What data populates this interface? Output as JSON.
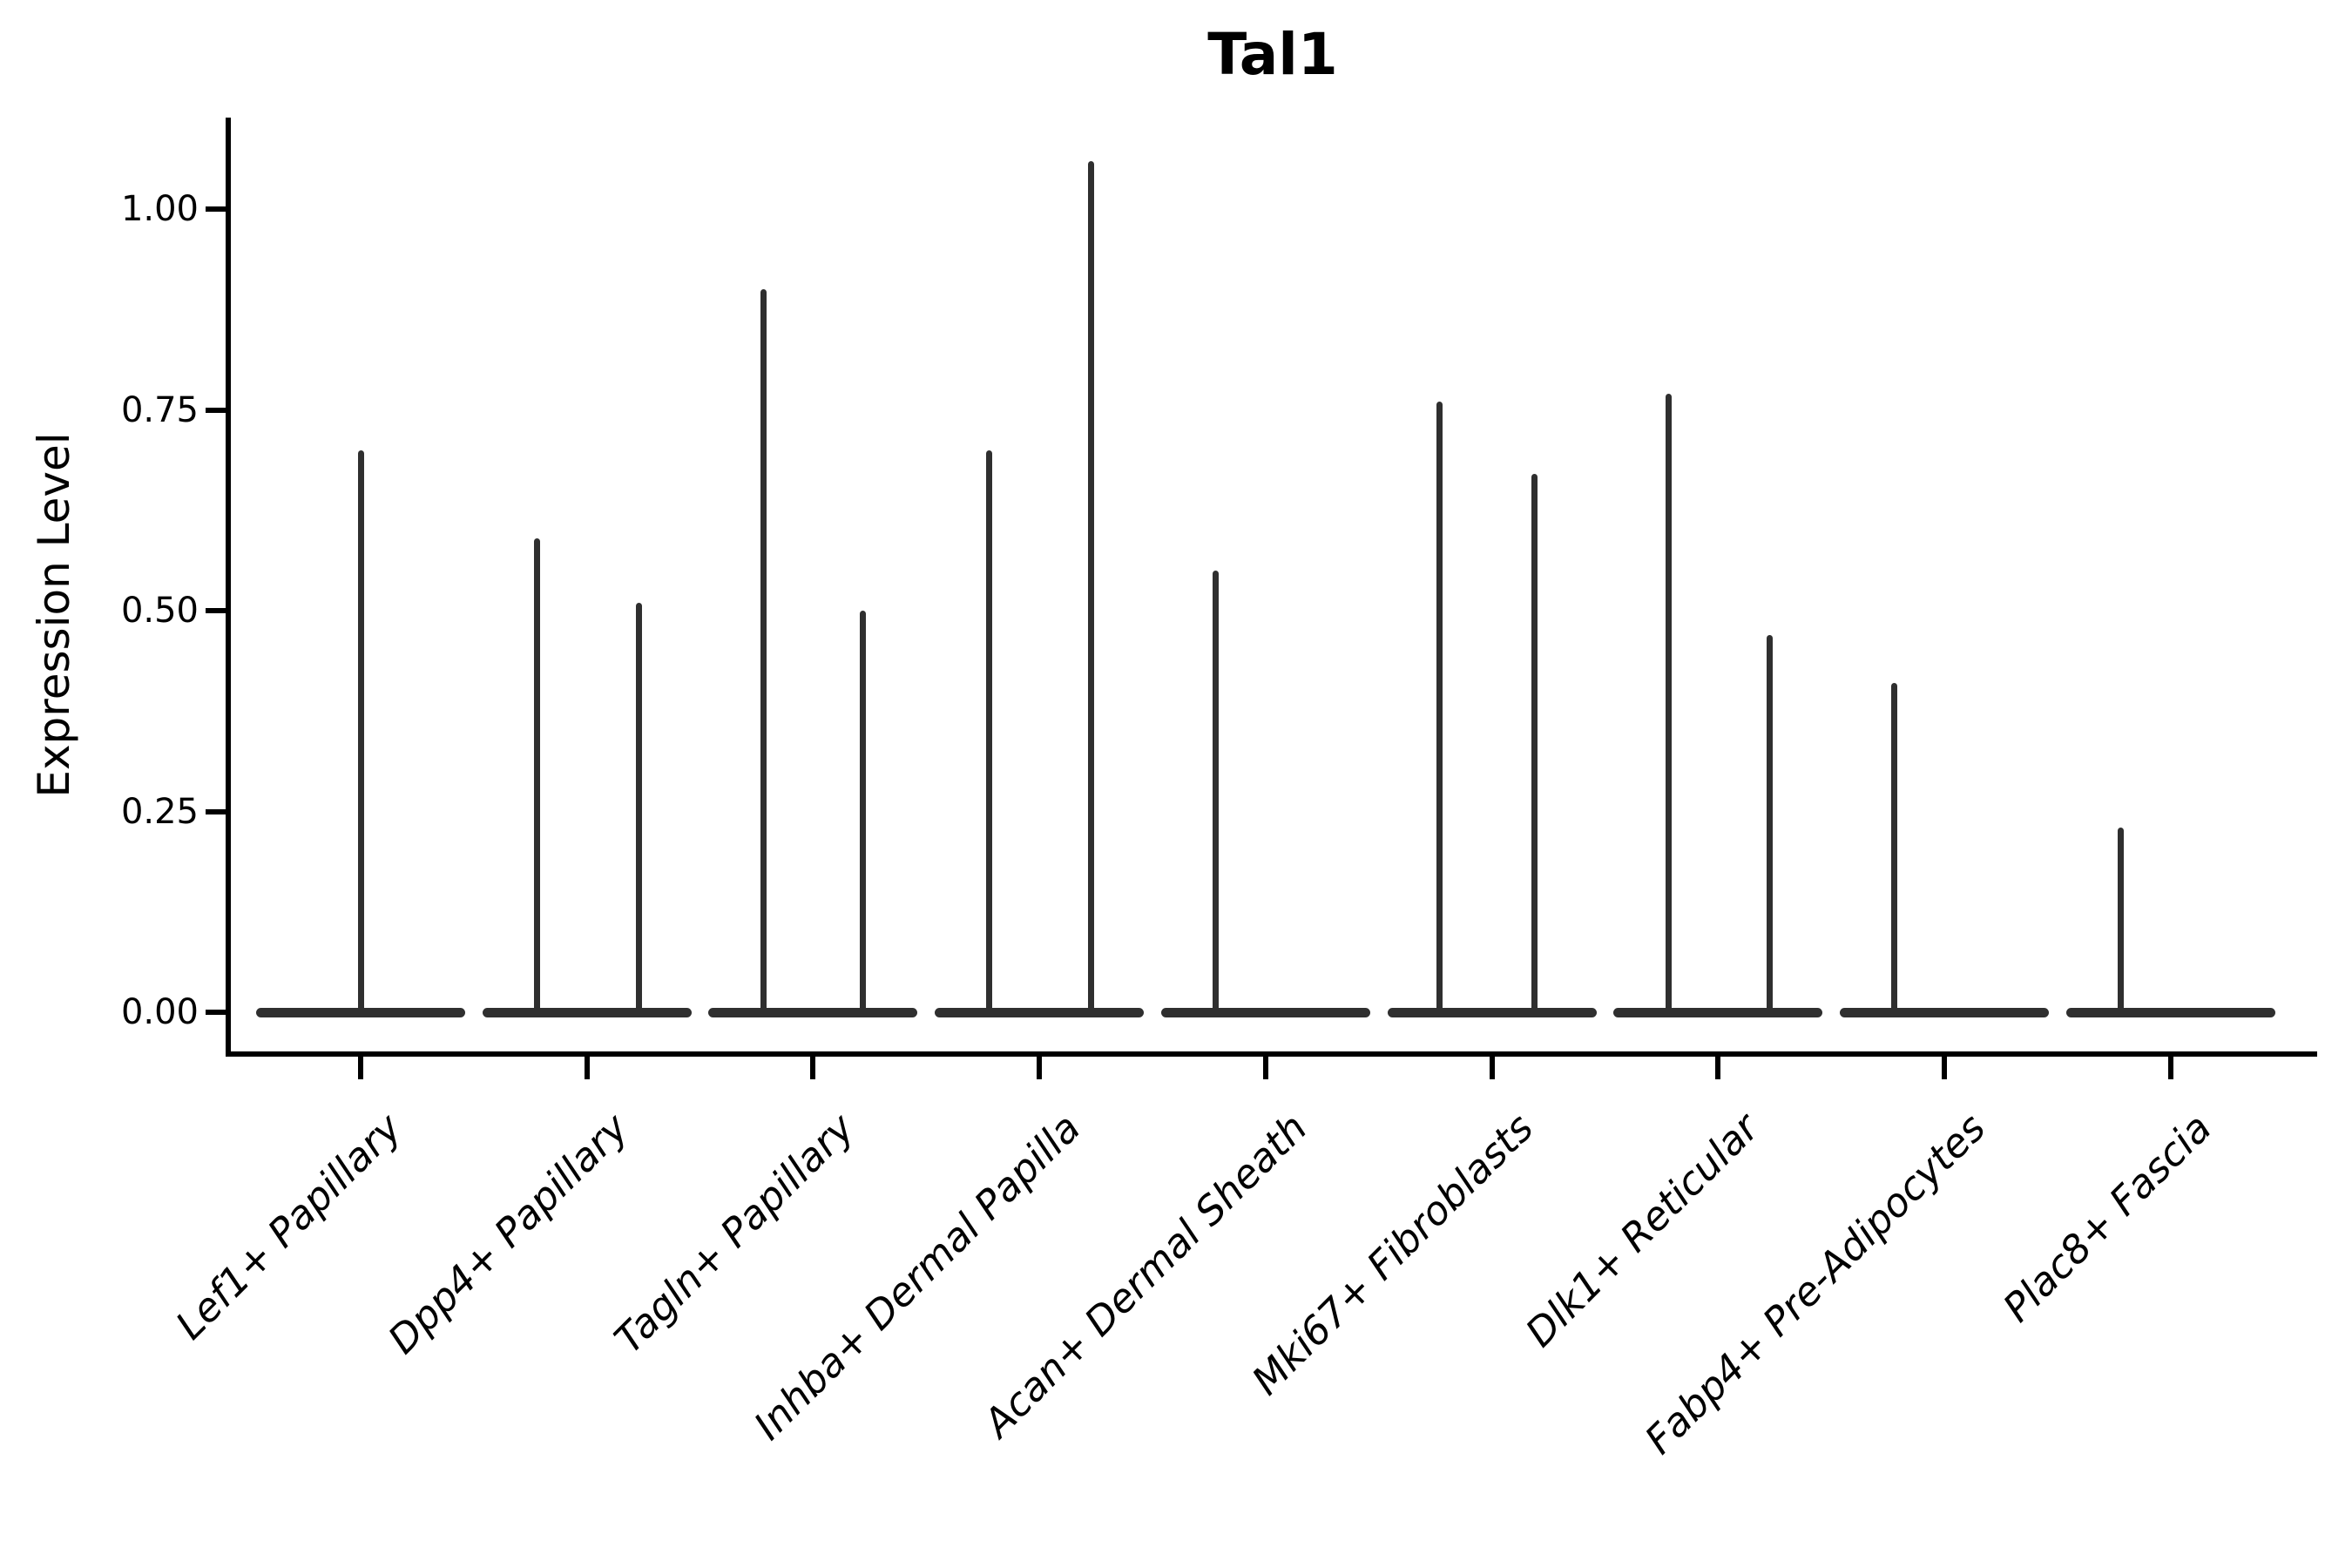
{
  "figure": {
    "title": "Tal1"
  },
  "y_axis": {
    "label": "Expression Level",
    "tick_labels": [
      "0.00",
      "0.25",
      "0.50",
      "0.75",
      "1.00"
    ],
    "tick_values": [
      0,
      0.25,
      0.5,
      0.75,
      1.0
    ]
  },
  "x_axis": {
    "categories": [
      "Lef1+ Papillary",
      "Dpp4+ Papillary",
      "Tagln+ Papillary",
      "Inhba+ Dermal Papilla",
      "Acan+ Dermal Sheath",
      "Mki67+ Fibroblasts",
      "Dlk1+ Reticular",
      "Fabp4+ Pre-Adipocytes",
      "Plac8+ Fascia"
    ]
  },
  "chart_data": {
    "type": "violin",
    "title": "Tal1",
    "xlabel": "",
    "ylabel": "Expression Level",
    "ylim": [
      0,
      1.11
    ],
    "yticks": [
      0,
      0.25,
      0.5,
      0.75,
      1.0
    ],
    "grid": false,
    "legend": "none",
    "categories": [
      "Lef1+ Papillary",
      "Dpp4+ Papillary",
      "Tagln+ Papillary",
      "Inhba+ Dermal Papilla",
      "Acan+ Dermal Sheath",
      "Mki67+ Fibroblasts",
      "Dlk1+ Reticular",
      "Fabp4+ Pre-Adipocytes",
      "Plac8+ Fascia"
    ],
    "violins": [
      {
        "category": "Lef1+ Papillary",
        "base_value": 0.0,
        "spikes": [
          {
            "offset": 0.0,
            "value": 0.7
          }
        ]
      },
      {
        "category": "Dpp4+ Papillary",
        "base_value": 0.0,
        "spikes": [
          {
            "offset": -0.22,
            "value": 0.59
          },
          {
            "offset": 0.23,
            "value": 0.51
          }
        ]
      },
      {
        "category": "Tagln+ Papillary",
        "base_value": 0.0,
        "spikes": [
          {
            "offset": -0.22,
            "value": 0.9
          },
          {
            "offset": 0.22,
            "value": 0.5
          }
        ]
      },
      {
        "category": "Inhba+ Dermal Papilla",
        "base_value": 0.0,
        "spikes": [
          {
            "offset": -0.22,
            "value": 0.7
          },
          {
            "offset": 0.23,
            "value": 1.06
          }
        ]
      },
      {
        "category": "Acan+ Dermal Sheath",
        "base_value": 0.0,
        "spikes": [
          {
            "offset": -0.22,
            "value": 0.55
          }
        ]
      },
      {
        "category": "Mki67+ Fibroblasts",
        "base_value": 0.0,
        "spikes": [
          {
            "offset": -0.23,
            "value": 0.76
          },
          {
            "offset": 0.19,
            "value": 0.67
          }
        ]
      },
      {
        "category": "Dlk1+ Reticular",
        "base_value": 0.0,
        "spikes": [
          {
            "offset": -0.22,
            "value": 0.77
          },
          {
            "offset": 0.23,
            "value": 0.47
          }
        ]
      },
      {
        "category": "Fabp4+ Pre-Adipocytes",
        "base_value": 0.0,
        "spikes": [
          {
            "offset": -0.22,
            "value": 0.41
          }
        ]
      },
      {
        "category": "Plac8+ Fascia",
        "base_value": 0.0,
        "spikes": [
          {
            "offset": -0.22,
            "value": 0.23
          }
        ]
      }
    ],
    "style": {
      "violin_color": "#2f2f2f",
      "axis_color": "#000000",
      "text_color": "#000000",
      "background": "#ffffff"
    }
  }
}
